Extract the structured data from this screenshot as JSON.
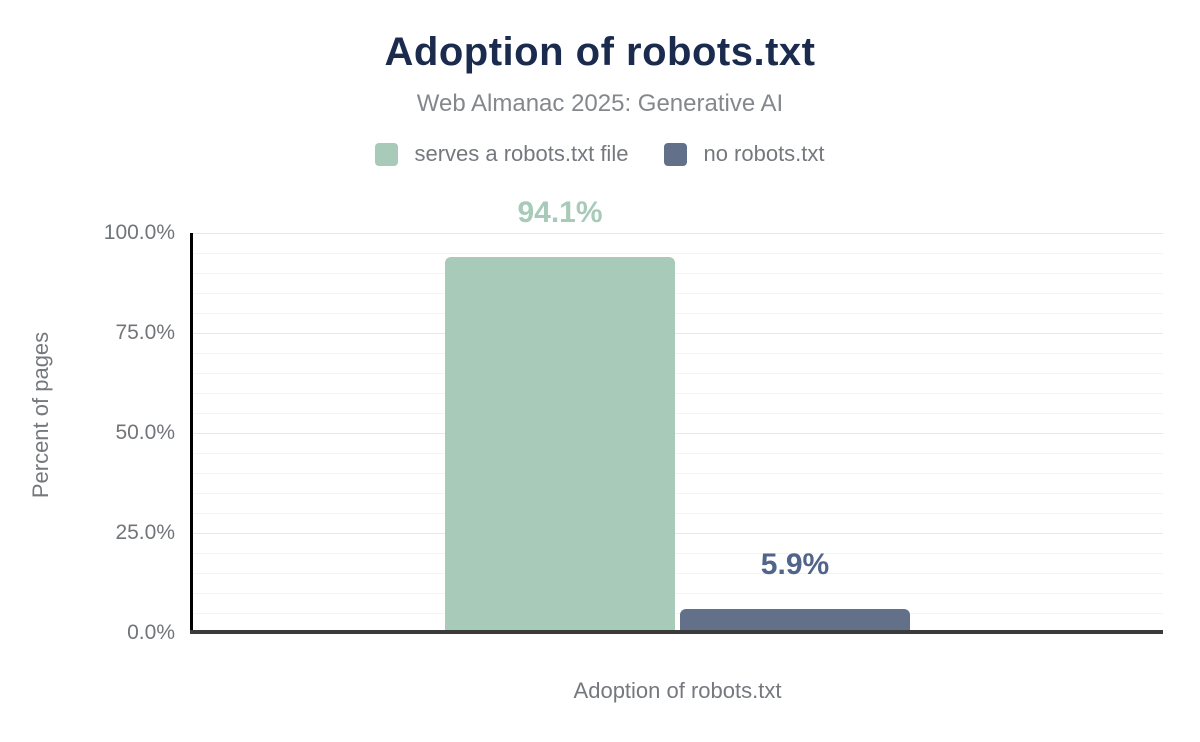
{
  "chart_data": {
    "type": "bar",
    "title": "Adoption of robots.txt",
    "subtitle": "Web Almanac 2025: Generative AI",
    "categories": [
      "Adoption of robots.txt"
    ],
    "series": [
      {
        "name": "serves a robots.txt file",
        "values": [
          94.1
        ],
        "data_label": "94.1%",
        "color": "#a7cab9",
        "label_color": "#a7cab9"
      },
      {
        "name": "no robots.txt",
        "values": [
          5.9
        ],
        "data_label": "5.9%",
        "color": "#62708a",
        "label_color": "#51658a"
      }
    ],
    "xlabel": "Adoption of robots.txt",
    "ylabel": "Percent of pages",
    "ylim": [
      0,
      100
    ],
    "y_ticks": [
      {
        "value": 100,
        "label": "100.0%"
      },
      {
        "value": 75,
        "label": "75.0%"
      },
      {
        "value": 50,
        "label": "50.0%"
      },
      {
        "value": 25,
        "label": "25.0%"
      },
      {
        "value": 0,
        "label": "0.0%"
      }
    ],
    "grid": {
      "horizontal": true,
      "major_interval": 25,
      "minor_interval": 5
    },
    "legend_position": "top"
  },
  "colors": {
    "background": "#ffffff",
    "title": "#1b2b4e",
    "subtitle": "#84888e",
    "axis_text": "#75797e",
    "tick_text": "#717579",
    "major_gridline": "#e8e8e8",
    "minor_gridline": "#f4f4f4",
    "y_axis_line": "#000000",
    "x_axis_line": "#3b3b3b"
  }
}
